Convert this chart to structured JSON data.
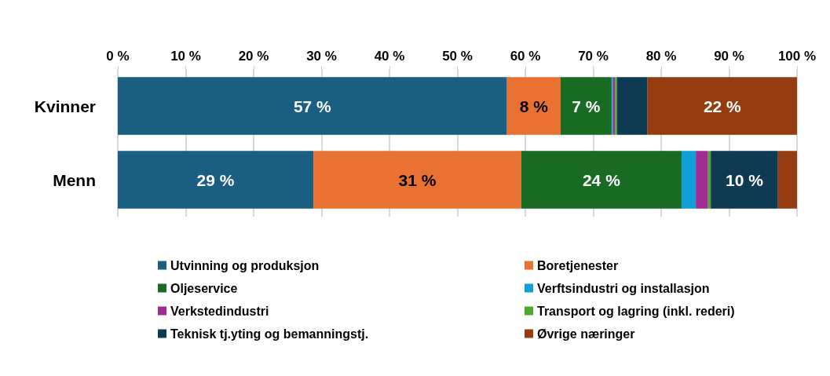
{
  "chart_data": {
    "type": "bar",
    "orientation": "horizontal",
    "stacked": true,
    "categories": [
      "Kvinner",
      "Menn"
    ],
    "series": [
      {
        "name": "Utvinning og produksjon",
        "color": "#1a5e82",
        "values": [
          57.3,
          28.8
        ],
        "value_labels": [
          "57 %",
          "29 %"
        ]
      },
      {
        "name": "Boretjenester",
        "color": "#e97132",
        "values": [
          7.9,
          30.6
        ],
        "value_labels": [
          "8 %",
          "31 %"
        ]
      },
      {
        "name": "Oljeservice",
        "color": "#196b24",
        "values": [
          7.5,
          23.6
        ],
        "value_labels": [
          "7 %",
          "24 %"
        ]
      },
      {
        "name": "Verftsindustri og installasjon",
        "color": "#0f9ed5",
        "values": [
          0.2,
          2.1
        ]
      },
      {
        "name": "Verkstedindustri",
        "color": "#a02b93",
        "values": [
          0.3,
          1.8
        ]
      },
      {
        "name": "Transport og lagring (inkl. rederi)",
        "color": "#4ea72e",
        "values": [
          0.3,
          0.4
        ]
      },
      {
        "name": "Teknisk tj.yting og bemanningstj.",
        "color": "#0e3a52",
        "values": [
          4.5,
          9.9
        ],
        "value_labels": [
          null,
          "10 %"
        ]
      },
      {
        "name": "Øvrige næringer",
        "color": "#953c10",
        "values": [
          22.0,
          2.8
        ],
        "value_labels": [
          "22 %",
          null
        ]
      }
    ],
    "xlim": [
      0,
      100
    ],
    "xticks": [
      {
        "value": 0,
        "label": "0 %"
      },
      {
        "value": 10,
        "label": "10 %"
      },
      {
        "value": 20,
        "label": "20 %"
      },
      {
        "value": 30,
        "label": "30 %"
      },
      {
        "value": 40,
        "label": "40 %"
      },
      {
        "value": 50,
        "label": "50 %"
      },
      {
        "value": 60,
        "label": "60 %"
      },
      {
        "value": 70,
        "label": "70 %"
      },
      {
        "value": 80,
        "label": "80 %"
      },
      {
        "value": 90,
        "label": "90 %"
      },
      {
        "value": 100,
        "label": "100 %"
      }
    ],
    "grid": "x",
    "legend": "bottom"
  }
}
